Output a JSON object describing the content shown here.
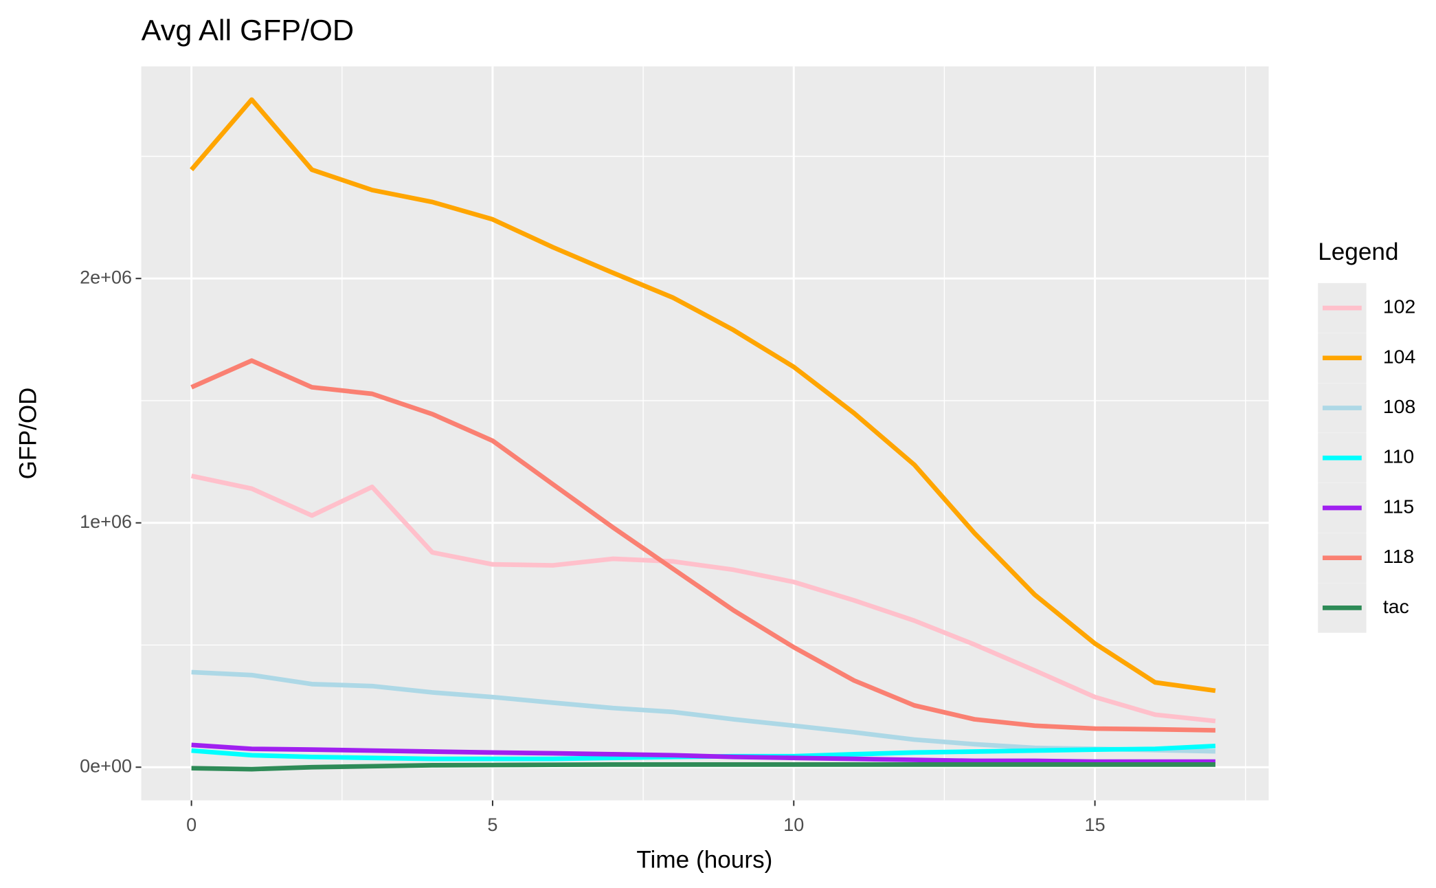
{
  "chart_data": {
    "type": "line",
    "title": "Avg All GFP/OD",
    "x_label": "Time (hours)",
    "y_label": "GFP/OD",
    "legend_title": "Legend",
    "legend_position": "right",
    "grid": true,
    "x": [
      0,
      1,
      2,
      3,
      4,
      5,
      6,
      7,
      8,
      9,
      10,
      11,
      12,
      13,
      14,
      15,
      16,
      17
    ],
    "xlim": [
      -0.833,
      17.885
    ],
    "xticks": [
      0,
      5,
      10,
      15
    ],
    "ylim": [
      -135849,
      2868000
    ],
    "yticks": [
      {
        "value": 0,
        "label": "0e+00"
      },
      {
        "value": 1000000,
        "label": "1e+06"
      },
      {
        "value": 2000000,
        "label": "2e+06"
      }
    ],
    "series": [
      {
        "name": "102",
        "color": "#FFC0CB",
        "values": [
          1192000,
          1140000,
          1030000,
          1147000,
          879000,
          830000,
          826000,
          853000,
          842000,
          808000,
          758000,
          683000,
          600000,
          502000,
          396000,
          287000,
          215000,
          189000
        ]
      },
      {
        "name": "104",
        "color": "#FFA500",
        "values": [
          2445000,
          2732000,
          2445000,
          2362000,
          2313000,
          2242000,
          2128000,
          2023000,
          1921000,
          1789000,
          1638000,
          1449000,
          1238000,
          958000,
          706000,
          506000,
          347000,
          313000
        ]
      },
      {
        "name": "108",
        "color": "#ADD8E6",
        "values": [
          389000,
          377000,
          340000,
          332000,
          306000,
          287000,
          264000,
          242000,
          226000,
          196000,
          170000,
          143000,
          113000,
          94000,
          79000,
          75000,
          70000,
          65000
        ]
      },
      {
        "name": "110",
        "color": "#00FFFF",
        "values": [
          68000,
          49000,
          42000,
          38000,
          34000,
          34000,
          34000,
          38000,
          42000,
          45000,
          45000,
          53000,
          60000,
          64000,
          68000,
          72000,
          75000,
          87000
        ]
      },
      {
        "name": "115",
        "color": "#A020F0",
        "values": [
          91000,
          75000,
          72000,
          68000,
          64000,
          60000,
          57000,
          53000,
          49000,
          42000,
          38000,
          34000,
          30000,
          26000,
          26000,
          23000,
          23000,
          23000
        ]
      },
      {
        "name": "118",
        "color": "#FA8072",
        "values": [
          1555000,
          1664000,
          1555000,
          1528000,
          1445000,
          1336000,
          1158000,
          981000,
          811000,
          642000,
          491000,
          355000,
          253000,
          196000,
          170000,
          158000,
          155000,
          151000
        ]
      },
      {
        "name": "tac",
        "color": "#2E8B57",
        "values": [
          -4000,
          -8000,
          0,
          4000,
          8000,
          9000,
          10000,
          11000,
          11000,
          11000,
          11000,
          11000,
          11000,
          11000,
          11000,
          11000,
          11000,
          11000
        ]
      }
    ]
  }
}
